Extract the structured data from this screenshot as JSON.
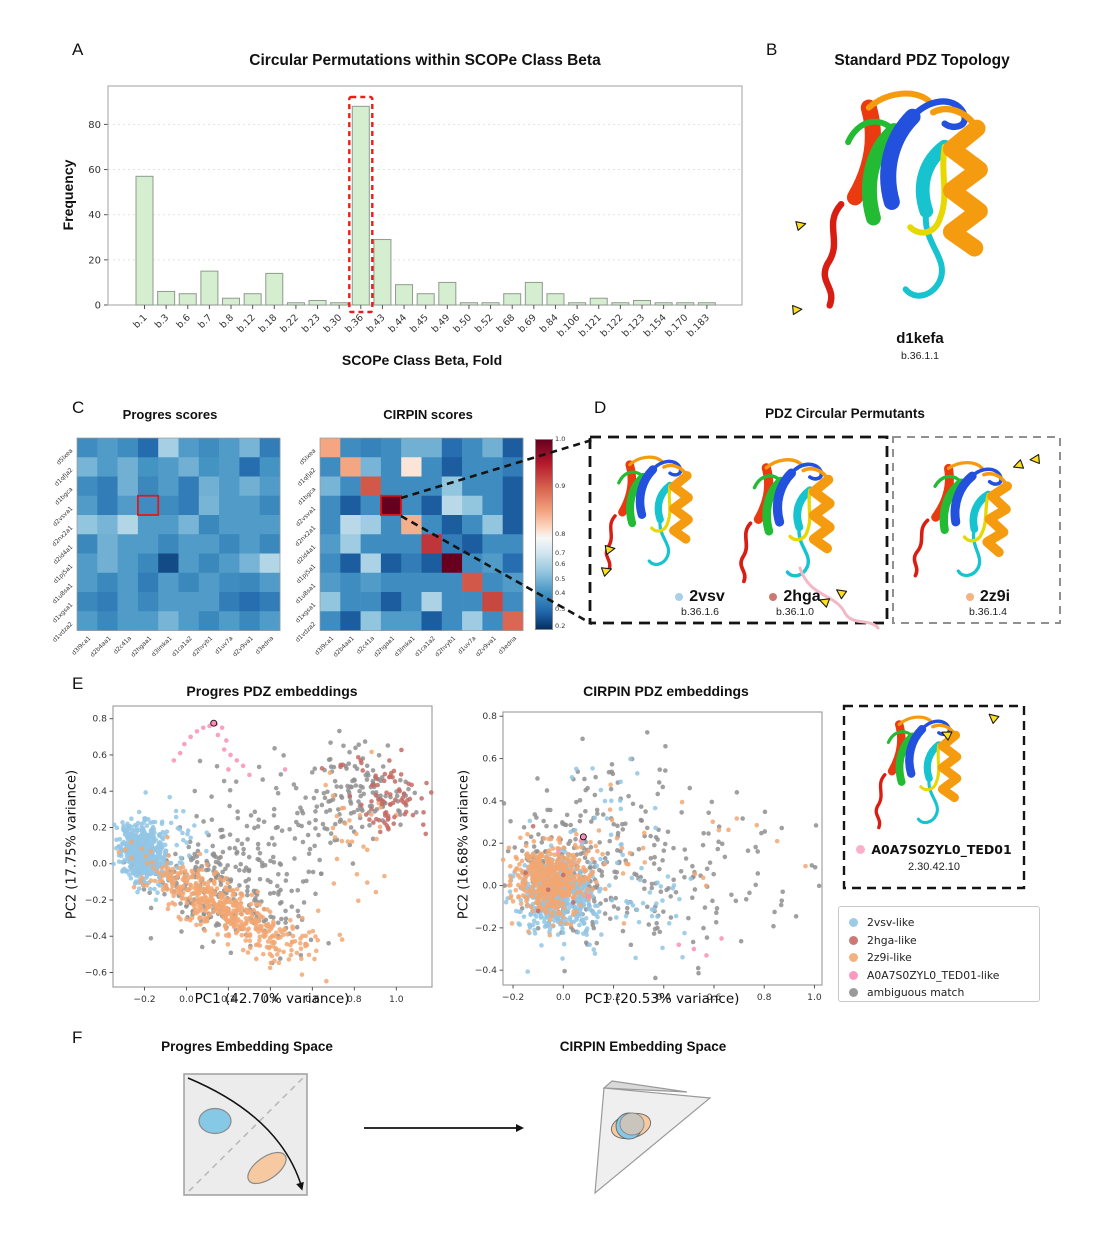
{
  "panels": {
    "A": {
      "label": "A",
      "title": "Circular Permutations within SCOPe Class Beta",
      "xlabel": "SCOPe Class Beta, Fold",
      "ylabel": "Frequency"
    },
    "B": {
      "label": "B",
      "title": "Standard PDZ Topology",
      "protein_name": "d1kefa",
      "protein_class": "b.36.1.1"
    },
    "C": {
      "label": "C",
      "heatmap1_title": "Progres scores",
      "heatmap2_title": "CIRPIN scores"
    },
    "D": {
      "label": "D",
      "title": "PDZ Circular Permutants",
      "proteins": [
        {
          "name": "2vsv",
          "class": "b.36.1.6",
          "dot_color": "#9fcbe8"
        },
        {
          "name": "2hga",
          "class": "b.36.1.0",
          "dot_color": "#c66a64"
        },
        {
          "name": "2z9i",
          "class": "b.36.1.4",
          "dot_color": "#f5ab74"
        }
      ]
    },
    "E": {
      "label": "E",
      "left_title": "Progres PDZ embeddings",
      "right_title": "CIRPIN PDZ embeddings",
      "inset": {
        "name": "A0A7S0ZYL0_TED01",
        "class": "2.30.42.10",
        "dot_color": "#f9a6c5"
      },
      "legend": [
        {
          "label": "2vsv-like",
          "color": "#92c5e4"
        },
        {
          "label": "2hga-like",
          "color": "#c66a64"
        },
        {
          "label": "2z9i-like",
          "color": "#f2a772"
        },
        {
          "label": "A0A7S0ZYL0_TED01-like",
          "color": "#f98fb9"
        },
        {
          "label": "ambiguous match",
          "color": "#8f8f8f"
        }
      ]
    },
    "F": {
      "label": "F",
      "left_title": "Progres Embedding Space",
      "right_title": "CIRPIN Embedding Space"
    }
  },
  "palette": {
    "2vsv-like": "#92c5e4",
    "2hga-like": "#c66a64",
    "2z9i-like": "#f2a772",
    "A0A7S0ZYL0_TED01-like": "#f98fb9",
    "ambiguous": "#8f8f8f",
    "bar_fill": "#d5eed0",
    "bar_edge": "#8f9b8f",
    "highlight_red": "#ed1c16"
  },
  "chart_data": [
    {
      "id": "panel_a_bar",
      "type": "bar",
      "title": "Circular Permutations within SCOPe Class Beta",
      "xlabel": "SCOPe Class Beta, Fold",
      "ylabel": "Frequency",
      "categories": [
        "b.1",
        "b.3",
        "b.6",
        "b.7",
        "b.8",
        "b.12",
        "b.18",
        "b.22",
        "b.23",
        "b.30",
        "b.36",
        "b.43",
        "b.44",
        "b.45",
        "b.49",
        "b.50",
        "b.52",
        "b.68",
        "b.69",
        "b.84",
        "b.106",
        "b.121",
        "b.122",
        "b.123",
        "b.154",
        "b.170",
        "b.183"
      ],
      "values": [
        57,
        6,
        5,
        15,
        3,
        5,
        14,
        1,
        2,
        1,
        88,
        29,
        9,
        5,
        10,
        1,
        1,
        5,
        10,
        5,
        1,
        3,
        1,
        2,
        1,
        1,
        1
      ],
      "yticks": [
        0,
        20,
        40,
        60,
        80
      ],
      "ylim": [
        0,
        97
      ],
      "highlight_category": "b.36",
      "grid": true,
      "legend_position": "none"
    },
    {
      "id": "progres_heatmap",
      "type": "heatmap",
      "title": "Progres scores",
      "rows": [
        "d5lxea",
        "d1qfja2",
        "d1bgca",
        "d2vsva1",
        "d2nx2a1",
        "d2id4a1",
        "d1pj5a1",
        "d1u8sa1",
        "d1xgsa1",
        "d1vdza2"
      ],
      "cols": [
        "d3l9ca1",
        "d2b4aa1",
        "d2c41a",
        "d2hgaa1",
        "d3lmka1",
        "d1ca1a2",
        "d2hvyb1",
        "d1uv7a",
        "d2v9va1",
        "d3edna"
      ],
      "values": [
        [
          0.46,
          0.5,
          0.46,
          0.34,
          0.63,
          0.5,
          0.46,
          0.5,
          0.56,
          0.4
        ],
        [
          0.56,
          0.5,
          0.55,
          0.48,
          0.5,
          0.55,
          0.48,
          0.5,
          0.35,
          0.48
        ],
        [
          0.46,
          0.4,
          0.55,
          0.44,
          0.5,
          0.4,
          0.55,
          0.5,
          0.55,
          0.5
        ],
        [
          0.5,
          0.4,
          0.5,
          0.46,
          0.45,
          0.4,
          0.56,
          0.5,
          0.5,
          0.44
        ],
        [
          0.6,
          0.56,
          0.65,
          0.5,
          0.5,
          0.56,
          0.44,
          0.5,
          0.5,
          0.5
        ],
        [
          0.44,
          0.55,
          0.5,
          0.5,
          0.44,
          0.5,
          0.5,
          0.44,
          0.5,
          0.44
        ],
        [
          0.5,
          0.55,
          0.5,
          0.44,
          0.26,
          0.5,
          0.44,
          0.5,
          0.56,
          0.65
        ],
        [
          0.5,
          0.44,
          0.5,
          0.4,
          0.5,
          0.44,
          0.5,
          0.46,
          0.44,
          0.5
        ],
        [
          0.44,
          0.4,
          0.5,
          0.44,
          0.5,
          0.5,
          0.5,
          0.4,
          0.35,
          0.4
        ],
        [
          0.5,
          0.44,
          0.5,
          0.5,
          0.56,
          0.5,
          0.44,
          0.5,
          0.44,
          0.5
        ]
      ],
      "highlight_cell": {
        "row": 3,
        "col": 3
      }
    },
    {
      "id": "cirpin_heatmap",
      "type": "heatmap",
      "title": "CIRPIN scores",
      "rows": [
        "d5lxea",
        "d1qfja2",
        "d1bgca",
        "d2vsva1",
        "d2nx2a1",
        "d2id4a1",
        "d1pj5a1",
        "d1u8sa1",
        "d1xgsa1",
        "d1vdza2"
      ],
      "cols": [
        "d3l9ca1",
        "d2b4aa1",
        "d2c41a",
        "d2hgaa1",
        "d3lmka1",
        "d1ca1a2",
        "d2hvyb1",
        "d1uv7a",
        "d2v9va1",
        "d3edna"
      ],
      "values": [
        [
          0.88,
          0.46,
          0.42,
          0.46,
          0.55,
          0.55,
          0.35,
          0.46,
          0.55,
          0.3
        ],
        [
          0.46,
          0.88,
          0.56,
          0.46,
          0.8,
          0.46,
          0.3,
          0.46,
          0.46,
          0.4
        ],
        [
          0.56,
          0.46,
          0.94,
          0.46,
          0.46,
          0.46,
          0.6,
          0.46,
          0.46,
          0.3
        ],
        [
          0.46,
          0.3,
          0.46,
          1.0,
          0.46,
          0.3,
          0.66,
          0.6,
          0.46,
          0.3
        ],
        [
          0.46,
          0.66,
          0.62,
          0.46,
          0.87,
          0.46,
          0.3,
          0.46,
          0.6,
          0.3
        ],
        [
          0.5,
          0.62,
          0.46,
          0.46,
          0.46,
          0.96,
          0.4,
          0.3,
          0.46,
          0.46
        ],
        [
          0.46,
          0.3,
          0.64,
          0.3,
          0.4,
          0.3,
          1.0,
          0.46,
          0.5,
          0.35
        ],
        [
          0.5,
          0.46,
          0.5,
          0.46,
          0.46,
          0.46,
          0.46,
          0.94,
          0.46,
          0.5
        ],
        [
          0.6,
          0.46,
          0.46,
          0.3,
          0.46,
          0.64,
          0.46,
          0.46,
          0.95,
          0.46
        ],
        [
          0.46,
          0.3,
          0.6,
          0.5,
          0.5,
          0.3,
          0.46,
          0.62,
          0.46,
          0.93
        ]
      ],
      "highlight_cell": {
        "row": 3,
        "col": 3
      },
      "colorbar": {
        "labels": [
          "1.0",
          "0.9",
          "0.8",
          "0.7",
          "0.6",
          "0.5",
          "0.4",
          "0.3",
          "0.2"
        ],
        "fractions": [
          0.0,
          0.247,
          0.504,
          0.602,
          0.663,
          0.743,
          0.814,
          0.902,
          0.991
        ]
      }
    },
    {
      "id": "progres_scatter",
      "type": "scatter",
      "title": "Progres PDZ embeddings",
      "xlabel": "PC1 (42.70% variance)",
      "ylabel": "PC2 (17.75% variance)",
      "xlim": [
        -0.35,
        1.17
      ],
      "ylim": [
        -0.68,
        0.87
      ],
      "xticks": [
        -0.2,
        0.0,
        0.2,
        0.4,
        0.6,
        0.8,
        1.0
      ],
      "yticks": [
        -0.6,
        -0.4,
        -0.2,
        0.0,
        0.2,
        0.4,
        0.6,
        0.8
      ],
      "clusters": [
        {
          "class": "ambiguous",
          "n": 260,
          "cx": 0.18,
          "cy": -0.13,
          "sx": 0.21,
          "sy": 0.13,
          "rot": -33
        },
        {
          "class": "ambiguous",
          "n": 130,
          "cx": 0.8,
          "cy": 0.38,
          "sx": 0.13,
          "sy": 0.13,
          "rot": 0
        },
        {
          "class": "ambiguous",
          "n": 80,
          "cx": 0.42,
          "cy": 0.22,
          "sx": 0.21,
          "sy": 0.17,
          "rot": 0
        },
        {
          "class": "2vsv-like",
          "n": 560,
          "cx": -0.21,
          "cy": 0.06,
          "sx": 0.05,
          "sy": 0.085,
          "rot": 15
        },
        {
          "class": "2vsv-like",
          "n": 60,
          "cx": -0.1,
          "cy": 0.12,
          "sx": 0.09,
          "sy": 0.11,
          "rot": 0
        },
        {
          "class": "2z9i-like",
          "n": 430,
          "cx": 0.14,
          "cy": -0.22,
          "sx": 0.19,
          "sy": 0.065,
          "rot": -34
        },
        {
          "class": "2z9i-like",
          "n": 55,
          "cx": 0.45,
          "cy": -0.43,
          "sx": 0.12,
          "sy": 0.06,
          "rot": -12
        },
        {
          "class": "2z9i-like",
          "n": 32,
          "cx": 0.8,
          "cy": 0.18,
          "sx": 0.09,
          "sy": 0.22,
          "rot": 0
        },
        {
          "class": "2hga-like",
          "n": 70,
          "cx": 0.97,
          "cy": 0.35,
          "sx": 0.075,
          "sy": 0.1,
          "rot": 0
        },
        {
          "class": "2hga-like",
          "n": 7,
          "cx": 0.74,
          "cy": 0.57,
          "sx": 0.08,
          "sy": 0.05,
          "rot": 0
        },
        {
          "class": "A0A7S0ZYL0_TED01-like",
          "points": [
            [
              -0.06,
              0.57
            ],
            [
              -0.03,
              0.61
            ],
            [
              -0.01,
              0.66
            ],
            [
              0.02,
              0.7
            ],
            [
              0.05,
              0.73
            ],
            [
              0.08,
              0.75
            ],
            [
              0.11,
              0.76
            ],
            [
              0.14,
              0.77
            ],
            [
              0.17,
              0.75
            ],
            [
              0.15,
              0.71
            ],
            [
              0.19,
              0.68
            ],
            [
              0.18,
              0.63
            ],
            [
              0.21,
              0.6
            ],
            [
              0.24,
              0.57
            ],
            [
              0.27,
              0.54
            ],
            [
              0.2,
              0.52
            ],
            [
              0.47,
              0.52
            ],
            [
              0.3,
              0.49
            ]
          ]
        }
      ],
      "highlight_point": {
        "x": 0.13,
        "y": 0.775,
        "class": "A0A7S0ZYL0_TED01-like"
      }
    },
    {
      "id": "cirpin_scatter",
      "type": "scatter",
      "title": "CIRPIN PDZ embeddings",
      "xlabel": "PC1 (20.53% variance)",
      "ylabel": "PC2 (16.68% variance)",
      "xlim": [
        -0.24,
        1.03
      ],
      "ylim": [
        -0.47,
        0.82
      ],
      "xticks": [
        -0.2,
        0.0,
        0.2,
        0.4,
        0.6,
        0.8,
        1.0
      ],
      "yticks": [
        -0.4,
        -0.2,
        0.0,
        0.2,
        0.4,
        0.6,
        0.8
      ],
      "clusters": [
        {
          "class": "ambiguous",
          "n": 150,
          "cx": 0.02,
          "cy": 0.08,
          "sx": 0.13,
          "sy": 0.15,
          "rot": 0
        },
        {
          "class": "ambiguous",
          "n": 140,
          "cx": 0.45,
          "cy": 0.02,
          "sx": 0.24,
          "sy": 0.19,
          "rot": 0
        },
        {
          "class": "ambiguous",
          "n": 45,
          "cx": 0.28,
          "cy": 0.42,
          "sx": 0.18,
          "sy": 0.13,
          "rot": 0
        },
        {
          "class": "2vsv-like",
          "n": 540,
          "cx": -0.03,
          "cy": -0.05,
          "sx": 0.075,
          "sy": 0.085,
          "rot": 0
        },
        {
          "class": "2vsv-like",
          "n": 60,
          "cx": 0.25,
          "cy": -0.12,
          "sx": 0.17,
          "sy": 0.13,
          "rot": 0
        },
        {
          "class": "2vsv-like",
          "n": 22,
          "cx": 0.18,
          "cy": 0.38,
          "sx": 0.14,
          "sy": 0.14,
          "rot": 0
        },
        {
          "class": "2z9i-like",
          "n": 480,
          "cx": -0.05,
          "cy": 0.03,
          "sx": 0.075,
          "sy": 0.08,
          "rot": 0
        },
        {
          "class": "2z9i-like",
          "n": 28,
          "cx": 0.2,
          "cy": 0.16,
          "sx": 0.12,
          "sy": 0.1,
          "rot": 0
        },
        {
          "class": "2z9i-like",
          "n": 10,
          "cx": 0.62,
          "cy": 0.2,
          "sx": 0.18,
          "sy": 0.1,
          "rot": 0
        },
        {
          "class": "2hga-like",
          "points": [
            [
              -0.12,
              0.28
            ],
            [
              -0.06,
              -0.02
            ],
            [
              0.0,
              0.05
            ],
            [
              -0.1,
              -0.12
            ],
            [
              0.04,
              -0.08
            ],
            [
              -0.15,
              0.06
            ]
          ]
        },
        {
          "class": "A0A7S0ZYL0_TED01-like",
          "points": [
            [
              0.08,
              0.23
            ],
            [
              0.07,
              0.21
            ],
            [
              -0.02,
              0.16
            ],
            [
              0.46,
              -0.28
            ],
            [
              0.52,
              -0.3
            ],
            [
              0.57,
              -0.33
            ],
            [
              0.63,
              -0.25
            ],
            [
              0.1,
              -0.05
            ]
          ]
        }
      ],
      "highlight_point": {
        "x": 0.08,
        "y": 0.23,
        "class": "A0A7S0ZYL0_TED01-like"
      }
    }
  ]
}
